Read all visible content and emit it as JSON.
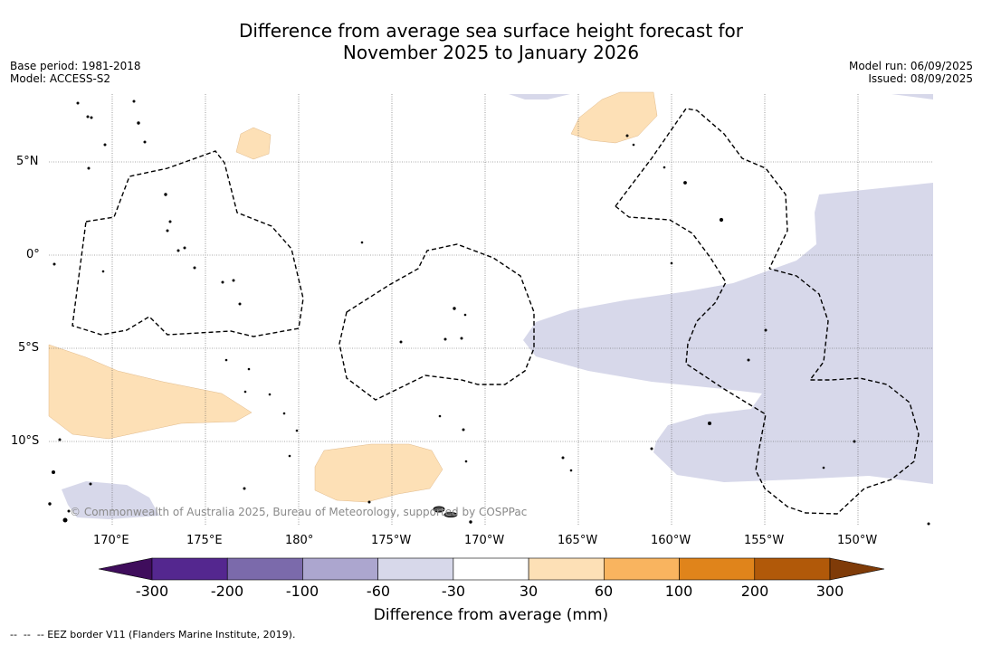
{
  "title_line1": "Difference from average sea surface height forecast for",
  "title_line2": "November 2025 to January 2026",
  "meta_left": {
    "base_period": "Base period: 1981-2018",
    "model": "Model: ACCESS-S2"
  },
  "meta_right": {
    "model_run": "Model run: 06/09/2025",
    "issued": "Issued: 08/09/2025"
  },
  "lat_ticks": [
    "5°N",
    "0°",
    "5°S",
    "10°S"
  ],
  "lon_ticks": [
    "170°E",
    "175°E",
    "180°",
    "175°W",
    "170°W",
    "165°W",
    "160°W",
    "155°W",
    "150°W"
  ],
  "colorbar": {
    "bin_colors": [
      "#3f0d5c",
      "#54278f",
      "#7b6aab",
      "#aca6cf",
      "#d7d8ea",
      "#ffffff",
      "#fde0b6",
      "#f9b45f",
      "#e0841b",
      "#b15909",
      "#7f3b08"
    ],
    "tick_labels": [
      "-300",
      "-200",
      "-100",
      "-60",
      "-30",
      "30",
      "60",
      "100",
      "200",
      "300"
    ],
    "label": "Difference from average (mm)"
  },
  "colors": {
    "negative_shade": "#d7d8ea",
    "positive_shade": "#fde0b6",
    "land": "#000000"
  },
  "copyright": "© Commonwealth of Australia 2025, Bureau of Meteorology, supported by COSPPac",
  "footnote": "--  --  -- EEZ border V11 (Flanders Marine Institute, 2019)."
}
